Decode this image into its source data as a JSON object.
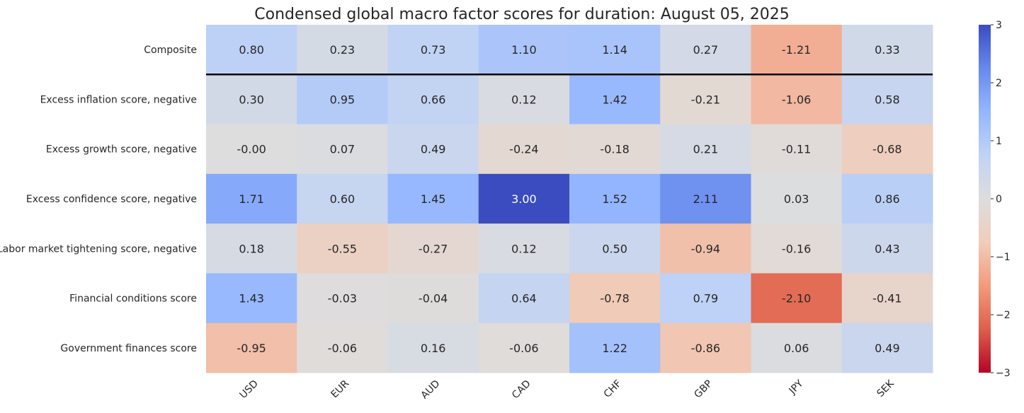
{
  "chart_data": {
    "type": "heatmap",
    "title": "Condensed global macro factor scores for duration: August 05, 2025",
    "xlabel": "",
    "ylabel": "",
    "columns": [
      "USD",
      "EUR",
      "AUD",
      "CAD",
      "CHF",
      "GBP",
      "JPY",
      "SEK"
    ],
    "rows": [
      "Composite",
      "Excess inflation score, negative",
      "Excess growth score, negative",
      "Excess confidence score, negative",
      "Labor market tightening score, negative",
      "Financial conditions score",
      "Government finances score"
    ],
    "values": [
      [
        0.8,
        0.23,
        0.73,
        1.1,
        1.14,
        0.27,
        -1.21,
        0.33
      ],
      [
        0.3,
        0.95,
        0.66,
        0.12,
        1.42,
        -0.21,
        -1.06,
        0.58
      ],
      [
        -0.0,
        0.07,
        0.49,
        -0.24,
        -0.18,
        0.21,
        -0.11,
        -0.68
      ],
      [
        1.71,
        0.6,
        1.45,
        3.0,
        1.52,
        2.11,
        0.03,
        0.86
      ],
      [
        0.18,
        -0.55,
        -0.27,
        0.12,
        0.5,
        -0.94,
        -0.16,
        0.43
      ],
      [
        1.43,
        -0.03,
        -0.04,
        0.64,
        -0.78,
        0.79,
        -2.1,
        -0.41
      ],
      [
        -0.95,
        -0.06,
        0.16,
        -0.06,
        1.22,
        -0.86,
        0.06,
        0.49
      ]
    ],
    "value_labels": [
      [
        "0.80",
        "0.23",
        "0.73",
        "1.10",
        "1.14",
        "0.27",
        "-1.21",
        "0.33"
      ],
      [
        "0.30",
        "0.95",
        "0.66",
        "0.12",
        "1.42",
        "-0.21",
        "-1.06",
        "0.58"
      ],
      [
        "-0.00",
        "0.07",
        "0.49",
        "-0.24",
        "-0.18",
        "0.21",
        "-0.11",
        "-0.68"
      ],
      [
        "1.71",
        "0.60",
        "1.45",
        "3.00",
        "1.52",
        "2.11",
        "0.03",
        "0.86"
      ],
      [
        "0.18",
        "-0.55",
        "-0.27",
        "0.12",
        "0.50",
        "-0.94",
        "-0.16",
        "0.43"
      ],
      [
        "1.43",
        "-0.03",
        "-0.04",
        "0.64",
        "-0.78",
        "0.79",
        "-2.10",
        "-0.41"
      ],
      [
        "-0.95",
        "-0.06",
        "0.16",
        "-0.06",
        "1.22",
        "-0.86",
        "0.06",
        "0.49"
      ]
    ],
    "colormap": "coolwarm_r",
    "colorbar_range": [
      -3,
      3
    ],
    "colorbar_ticks": [
      3,
      2,
      1,
      0,
      -1,
      -2,
      -3
    ],
    "colorbar_tick_labels": [
      "3",
      "2",
      "1",
      "0",
      "−1",
      "−2",
      "−3"
    ],
    "separator_after_row": 0,
    "grid": false,
    "colorbar_placement": "right",
    "colors": {
      "low": "#b40426",
      "mid": "#dddddd",
      "high": "#3b4cc0",
      "separator": "#000000"
    }
  }
}
